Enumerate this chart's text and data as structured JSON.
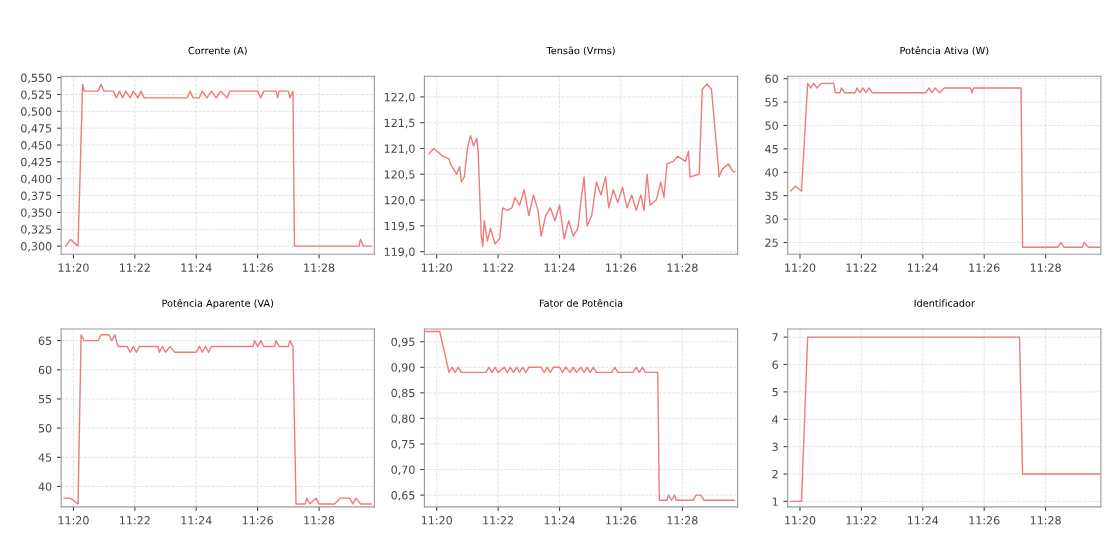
{
  "chart_data": [
    {
      "type": "line",
      "title": "Corrente (A)",
      "grid": true,
      "xlim": [
        11.32667,
        11.49667
      ],
      "xticks": [
        {
          "value": 11.33333,
          "label": "11:20"
        },
        {
          "value": 11.36667,
          "label": "11:22"
        },
        {
          "value": 11.4,
          "label": "11:24"
        },
        {
          "value": 11.43333,
          "label": "11:26"
        },
        {
          "value": 11.46667,
          "label": "11:28"
        }
      ],
      "ylim": [
        0.288,
        0.552
      ],
      "yticks": [
        {
          "value": 0.3,
          "label": "0,300"
        },
        {
          "value": 0.325,
          "label": "0,325"
        },
        {
          "value": 0.35,
          "label": "0,350"
        },
        {
          "value": 0.375,
          "label": "0,375"
        },
        {
          "value": 0.4,
          "label": "0,400"
        },
        {
          "value": 0.425,
          "label": "0,425"
        },
        {
          "value": 0.45,
          "label": "0,450"
        },
        {
          "value": 0.475,
          "label": "0,475"
        },
        {
          "value": 0.5,
          "label": "0,500"
        },
        {
          "value": 0.525,
          "label": "0,525"
        },
        {
          "value": 0.55,
          "label": "0,550"
        }
      ],
      "series": [
        {
          "color": "#ee7a7a",
          "x": [
            11.32917,
            11.33167,
            11.33583,
            11.33833,
            11.33917,
            11.34667,
            11.34833,
            11.35,
            11.355,
            11.35667,
            11.35833,
            11.36,
            11.36167,
            11.36417,
            11.36583,
            11.36833,
            11.37,
            11.37167,
            11.395,
            11.39667,
            11.39833,
            11.40167,
            11.40333,
            11.40583,
            11.40833,
            11.41083,
            11.41333,
            11.41667,
            11.41833,
            11.43333,
            11.435,
            11.43667,
            11.44333,
            11.44417,
            11.445,
            11.45,
            11.45083,
            11.4525,
            11.45333,
            11.48833,
            11.48917,
            11.49083,
            11.495
          ],
          "values": [
            0.3,
            0.31,
            0.3,
            0.54,
            0.53,
            0.53,
            0.54,
            0.53,
            0.53,
            0.52,
            0.53,
            0.52,
            0.53,
            0.52,
            0.53,
            0.52,
            0.53,
            0.52,
            0.52,
            0.53,
            0.52,
            0.52,
            0.53,
            0.52,
            0.53,
            0.52,
            0.53,
            0.52,
            0.53,
            0.53,
            0.52,
            0.53,
            0.53,
            0.52,
            0.53,
            0.53,
            0.52,
            0.53,
            0.3,
            0.3,
            0.31,
            0.3,
            0.3
          ]
        }
      ]
    },
    {
      "type": "line",
      "title": "Tensão (Vrms)",
      "grid": true,
      "xlim": [
        11.32667,
        11.49667
      ],
      "xticks": [
        {
          "value": 11.33333,
          "label": "11:20"
        },
        {
          "value": 11.36667,
          "label": "11:22"
        },
        {
          "value": 11.4,
          "label": "11:24"
        },
        {
          "value": 11.43333,
          "label": "11:26"
        },
        {
          "value": 11.46667,
          "label": "11:28"
        }
      ],
      "ylim": [
        118.95,
        122.4
      ],
      "yticks": [
        {
          "value": 119.0,
          "label": "119,0"
        },
        {
          "value": 119.5,
          "label": "119,5"
        },
        {
          "value": 120.0,
          "label": "120,0"
        },
        {
          "value": 120.5,
          "label": "120,5"
        },
        {
          "value": 121.0,
          "label": "121,0"
        },
        {
          "value": 121.5,
          "label": "121,5"
        },
        {
          "value": 122.0,
          "label": "122,0"
        }
      ],
      "series": [
        {
          "color": "#ee7a7a",
          "x": [
            11.32917,
            11.33167,
            11.33667,
            11.34,
            11.34083,
            11.3425,
            11.34417,
            11.34583,
            11.34667,
            11.34833,
            11.35,
            11.35167,
            11.35333,
            11.355,
            11.35583,
            11.3575,
            11.35833,
            11.35917,
            11.36083,
            11.3625,
            11.365,
            11.3675,
            11.36917,
            11.37167,
            11.37417,
            11.37583,
            11.37833,
            11.38083,
            11.38333,
            11.38583,
            11.38833,
            11.39,
            11.3925,
            11.395,
            11.3975,
            11.4,
            11.4025,
            11.405,
            11.4075,
            11.41,
            11.41167,
            11.41333,
            11.415,
            11.4175,
            11.42,
            11.4225,
            11.425,
            11.42667,
            11.42917,
            11.43167,
            11.43417,
            11.43667,
            11.43917,
            11.44167,
            11.44417,
            11.44583,
            11.4475,
            11.44917,
            11.4525,
            11.455,
            11.45667,
            11.45833,
            11.46167,
            11.46417,
            11.46833,
            11.47,
            11.47083,
            11.47583,
            11.4775,
            11.48,
            11.4825,
            11.48667,
            11.48833,
            11.49167,
            11.49417,
            11.495
          ],
          "values": [
            120.9,
            121.0,
            120.85,
            120.8,
            120.7,
            120.6,
            120.5,
            120.65,
            120.35,
            120.45,
            121.0,
            121.25,
            121.05,
            121.2,
            120.95,
            119.3,
            119.1,
            119.6,
            119.2,
            119.45,
            119.15,
            119.25,
            119.85,
            119.8,
            119.85,
            120.05,
            119.9,
            120.2,
            119.7,
            120.1,
            119.8,
            119.3,
            119.7,
            119.85,
            119.6,
            119.9,
            119.25,
            119.6,
            119.3,
            119.45,
            120.0,
            120.45,
            119.5,
            119.7,
            120.35,
            120.1,
            120.45,
            119.85,
            120.2,
            119.95,
            120.25,
            119.85,
            120.1,
            119.8,
            120.1,
            119.8,
            120.5,
            119.9,
            120.0,
            120.35,
            120.05,
            120.7,
            120.75,
            120.85,
            120.75,
            120.95,
            120.45,
            120.5,
            122.15,
            122.25,
            122.15,
            120.45,
            120.6,
            120.7,
            120.55,
            120.55
          ]
        }
      ]
    },
    {
      "type": "line",
      "title": "Potência Ativa (W)",
      "grid": true,
      "xlim": [
        11.32667,
        11.49667
      ],
      "xticks": [
        {
          "value": 11.33333,
          "label": "11:20"
        },
        {
          "value": 11.36667,
          "label": "11:22"
        },
        {
          "value": 11.4,
          "label": "11:24"
        },
        {
          "value": 11.43333,
          "label": "11:26"
        },
        {
          "value": 11.46667,
          "label": "11:28"
        }
      ],
      "ylim": [
        22.5,
        60.5
      ],
      "yticks": [
        25,
        30,
        35,
        40,
        45,
        50,
        55,
        60
      ],
      "series": [
        {
          "color": "#ee7a7a",
          "x": [
            11.32833,
            11.33083,
            11.33417,
            11.3375,
            11.33917,
            11.34083,
            11.3425,
            11.345,
            11.35167,
            11.3525,
            11.355,
            11.35583,
            11.3575,
            11.36333,
            11.36417,
            11.36583,
            11.3675,
            11.36917,
            11.37083,
            11.3725,
            11.40167,
            11.40333,
            11.405,
            11.40667,
            11.40917,
            11.41167,
            11.42583,
            11.42667,
            11.4275,
            11.45333,
            11.45417,
            11.47333,
            11.475,
            11.47667,
            11.48667,
            11.4875,
            11.49,
            11.49583
          ],
          "values": [
            36,
            37,
            36,
            59,
            58,
            59,
            58,
            59,
            59,
            57,
            57,
            58,
            57,
            57,
            58,
            57,
            58,
            57,
            58,
            57,
            57,
            58,
            57,
            58,
            57,
            58,
            58,
            57,
            58,
            58,
            24,
            24,
            25,
            24,
            24,
            25,
            24,
            24
          ]
        }
      ]
    },
    {
      "type": "line",
      "title": "Potência Aparente (VA)",
      "grid": true,
      "xlim": [
        11.32667,
        11.49667
      ],
      "xticks": [
        {
          "value": 11.33333,
          "label": "11:20"
        },
        {
          "value": 11.36667,
          "label": "11:22"
        },
        {
          "value": 11.4,
          "label": "11:24"
        },
        {
          "value": 11.43333,
          "label": "11:26"
        },
        {
          "value": 11.46667,
          "label": "11:28"
        }
      ],
      "ylim": [
        36.5,
        67
      ],
      "yticks": [
        40,
        45,
        50,
        55,
        60,
        65
      ],
      "series": [
        {
          "color": "#ee7a7a",
          "x": [
            11.32833,
            11.33167,
            11.33583,
            11.3375,
            11.33917,
            11.34667,
            11.34833,
            11.3525,
            11.35417,
            11.35583,
            11.3575,
            11.3625,
            11.36417,
            11.36583,
            11.3675,
            11.36917,
            11.37917,
            11.38,
            11.38167,
            11.38333,
            11.38583,
            11.38833,
            11.4,
            11.40167,
            11.40333,
            11.405,
            11.40667,
            11.40833,
            11.43083,
            11.43167,
            11.43333,
            11.435,
            11.43667,
            11.4425,
            11.44333,
            11.445,
            11.45,
            11.45083,
            11.4525,
            11.45417,
            11.45917,
            11.46,
            11.46167,
            11.465,
            11.46667,
            11.475,
            11.47833,
            11.48333,
            11.485,
            11.48667,
            11.48917,
            11.495
          ],
          "values": [
            38,
            38,
            37,
            66,
            65,
            65,
            66,
            66,
            65,
            66,
            64,
            64,
            63,
            64,
            63,
            64,
            64,
            63,
            64,
            63,
            64,
            63,
            63,
            64,
            63,
            64,
            63,
            64,
            64,
            65,
            64,
            65,
            64,
            64,
            65,
            64,
            64,
            65,
            64,
            37,
            37,
            38,
            37,
            38,
            37,
            37,
            38,
            38,
            37,
            38,
            37,
            37
          ]
        }
      ]
    },
    {
      "type": "line",
      "title": "Fator de Potência",
      "grid": true,
      "xlim": [
        11.32667,
        11.49667
      ],
      "xticks": [
        {
          "value": 11.33333,
          "label": "11:20"
        },
        {
          "value": 11.36667,
          "label": "11:22"
        },
        {
          "value": 11.4,
          "label": "11:24"
        },
        {
          "value": 11.43333,
          "label": "11:26"
        },
        {
          "value": 11.46667,
          "label": "11:28"
        }
      ],
      "ylim": [
        0.627,
        0.975
      ],
      "yticks": [
        {
          "value": 0.65,
          "label": "0,65"
        },
        {
          "value": 0.7,
          "label": "0,70"
        },
        {
          "value": 0.75,
          "label": "0,75"
        },
        {
          "value": 0.8,
          "label": "0,80"
        },
        {
          "value": 0.85,
          "label": "0,85"
        },
        {
          "value": 0.9,
          "label": "0,90"
        },
        {
          "value": 0.95,
          "label": "0,95"
        }
      ],
      "series": [
        {
          "color": "#ee7a7a",
          "x": [
            11.32667,
            11.335,
            11.34,
            11.34167,
            11.34333,
            11.345,
            11.34667,
            11.36,
            11.36167,
            11.36333,
            11.365,
            11.36667,
            11.37,
            11.37167,
            11.37333,
            11.375,
            11.37667,
            11.37833,
            11.38,
            11.38167,
            11.38333,
            11.39,
            11.39167,
            11.39333,
            11.395,
            11.39667,
            11.4,
            11.40167,
            11.40333,
            11.40583,
            11.4075,
            11.40917,
            11.41167,
            11.41333,
            11.415,
            11.41667,
            11.41833,
            11.42,
            11.42833,
            11.43,
            11.43167,
            11.44,
            11.44167,
            11.44333,
            11.445,
            11.44667,
            11.45333,
            11.45417,
            11.45833,
            11.45917,
            11.46083,
            11.4625,
            11.46333,
            11.4725,
            11.47417,
            11.47667,
            11.47833,
            11.495
          ],
          "values": [
            0.97,
            0.97,
            0.89,
            0.9,
            0.89,
            0.9,
            0.89,
            0.89,
            0.9,
            0.89,
            0.9,
            0.89,
            0.9,
            0.89,
            0.9,
            0.89,
            0.9,
            0.89,
            0.9,
            0.89,
            0.9,
            0.9,
            0.89,
            0.9,
            0.89,
            0.9,
            0.9,
            0.89,
            0.9,
            0.89,
            0.9,
            0.89,
            0.9,
            0.89,
            0.9,
            0.89,
            0.9,
            0.89,
            0.89,
            0.9,
            0.89,
            0.89,
            0.9,
            0.89,
            0.9,
            0.89,
            0.89,
            0.64,
            0.64,
            0.65,
            0.64,
            0.65,
            0.64,
            0.64,
            0.65,
            0.65,
            0.64,
            0.64
          ]
        }
      ]
    },
    {
      "type": "line",
      "title": "Identificador",
      "grid": true,
      "xlim": [
        11.32667,
        11.49667
      ],
      "xticks": [
        {
          "value": 11.33333,
          "label": "11:20"
        },
        {
          "value": 11.36667,
          "label": "11:22"
        },
        {
          "value": 11.4,
          "label": "11:24"
        },
        {
          "value": 11.43333,
          "label": "11:26"
        },
        {
          "value": 11.46667,
          "label": "11:28"
        }
      ],
      "ylim": [
        0.8,
        7.3
      ],
      "yticks": [
        1,
        2,
        3,
        4,
        5,
        6,
        7
      ],
      "series": [
        {
          "color": "#ee7a7a",
          "x": [
            11.32833,
            11.33417,
            11.3375,
            11.4525,
            11.45417,
            11.49583
          ],
          "values": [
            1,
            1,
            7,
            7,
            2,
            2
          ]
        }
      ]
    }
  ]
}
